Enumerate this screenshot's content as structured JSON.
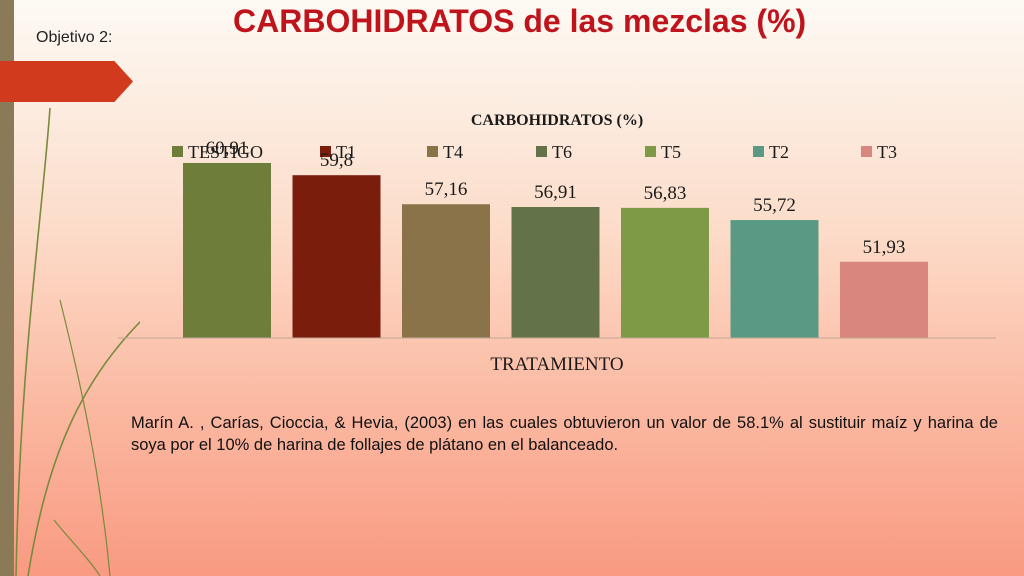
{
  "slide": {
    "subtitle": "Objetivo 2:",
    "title": "CARBOHIDRATOS de las mezclas (%)",
    "paragraph": "Marín A. , Carías, Cioccia, & Hevia, (2003) en las cuales obtuvieron un valor de 58.1% al sustituir maíz y harina de soya por el 10% de harina de follajes de plátano en el balanceado."
  },
  "colors": {
    "title_red": "#c0141d",
    "arrow_red": "#d13a1c",
    "sidebar": "#8a7a58",
    "deco_green": "#7a8a3c"
  },
  "chart_data": {
    "type": "bar",
    "title": "CARBOHIDRATOS (%)",
    "xlabel": "TRATAMIENTO",
    "ylabel": "",
    "grid": false,
    "legend": "top",
    "series": [
      {
        "name": "TESTIGO",
        "value": 60.91,
        "label": "60,91",
        "color": "#6e7d3a"
      },
      {
        "name": "T1",
        "value": 59.8,
        "label": "59,8",
        "color": "#7b1d0c"
      },
      {
        "name": "T4",
        "value": 57.16,
        "label": "57,16",
        "color": "#8a7249"
      },
      {
        "name": "T6",
        "value": 56.91,
        "label": "56,91",
        "color": "#637248"
      },
      {
        "name": "T5",
        "value": 56.83,
        "label": "56,83",
        "color": "#7f9a47"
      },
      {
        "name": "T2",
        "value": 55.72,
        "label": "55,72",
        "color": "#5a9a84"
      },
      {
        "name": "T3",
        "value": 51.93,
        "label": "51,93",
        "color": "#d9867e"
      }
    ],
    "ylim": [
      45,
      63
    ]
  }
}
